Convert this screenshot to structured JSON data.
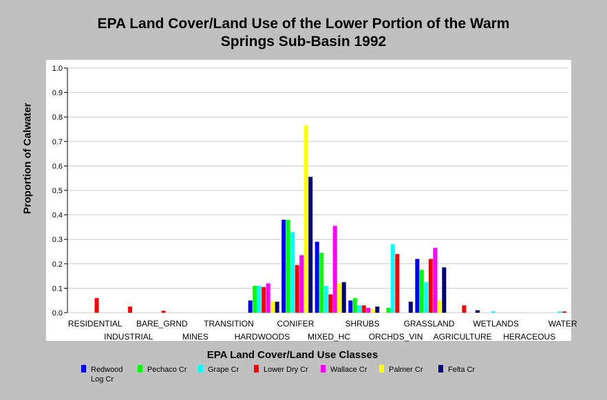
{
  "chart_data": {
    "type": "bar",
    "title": [
      "EPA Land Cover/Land Use of the Lower Portion of the Warm",
      "Springs Sub-Basin 1992"
    ],
    "xlabel": "EPA Land Cover/Land Use Classes",
    "ylabel": "Proportion of Calwater",
    "ylim": [
      0,
      1.0
    ],
    "yticks": [
      "0.0",
      "0.1",
      "0.2",
      "0.3",
      "0.4",
      "0.5",
      "0.6",
      "0.7",
      "0.8",
      "0.9",
      "1.0"
    ],
    "grid": true,
    "categories": [
      "RESIDENTIAL",
      "INDUSTRIAL",
      "BARE_GRND",
      "MINES",
      "TRANSITION",
      "HARDWOODS",
      "CONIFER",
      "MIXED_HC",
      "SHRUBS",
      "ORCHDS_VIN",
      "GRASSLAND",
      "AGRICULTURE",
      "WETLANDS",
      "HERACEOUS",
      "WATER"
    ],
    "series": [
      {
        "name": "Redwood Log Cr",
        "color": "#0000ff",
        "values": [
          0,
          0,
          0,
          0,
          0,
          0.05,
          0.38,
          0.29,
          0.05,
          0,
          0.22,
          0,
          0,
          0,
          0
        ]
      },
      {
        "name": "Pechaco Cr",
        "color": "#00ff00",
        "values": [
          0,
          0,
          0,
          0,
          0,
          0.11,
          0.38,
          0.245,
          0.06,
          0.02,
          0.175,
          0,
          0,
          0,
          0
        ]
      },
      {
        "name": "Grape Cr",
        "color": "#00ffff",
        "values": [
          0,
          0,
          0,
          0,
          0,
          0.11,
          0.33,
          0.11,
          0.03,
          0.28,
          0.125,
          0,
          0.005,
          0,
          0.005
        ]
      },
      {
        "name": "Lower Dry Cr",
        "color": "#ff0000",
        "values": [
          0.06,
          0.025,
          0.008,
          0,
          0,
          0.105,
          0.195,
          0.075,
          0.03,
          0.24,
          0.22,
          0.03,
          0,
          0,
          0.005
        ]
      },
      {
        "name": "Wallace Cr",
        "color": "#ff00ff",
        "values": [
          0,
          0,
          0,
          0,
          0,
          0.12,
          0.235,
          0.355,
          0.02,
          0,
          0.265,
          0,
          0,
          0,
          0
        ]
      },
      {
        "name": "Palmer Cr",
        "color": "#ffff00",
        "values": [
          0,
          0,
          0,
          0,
          0,
          0.045,
          0.765,
          0.12,
          0.015,
          0,
          0.05,
          0,
          0,
          0,
          0
        ]
      },
      {
        "name": "Felta Cr",
        "color": "#000080",
        "values": [
          0,
          0,
          0,
          0,
          0,
          0.045,
          0.555,
          0.125,
          0.025,
          0.045,
          0.185,
          0.01,
          0,
          0,
          0
        ]
      }
    ]
  }
}
